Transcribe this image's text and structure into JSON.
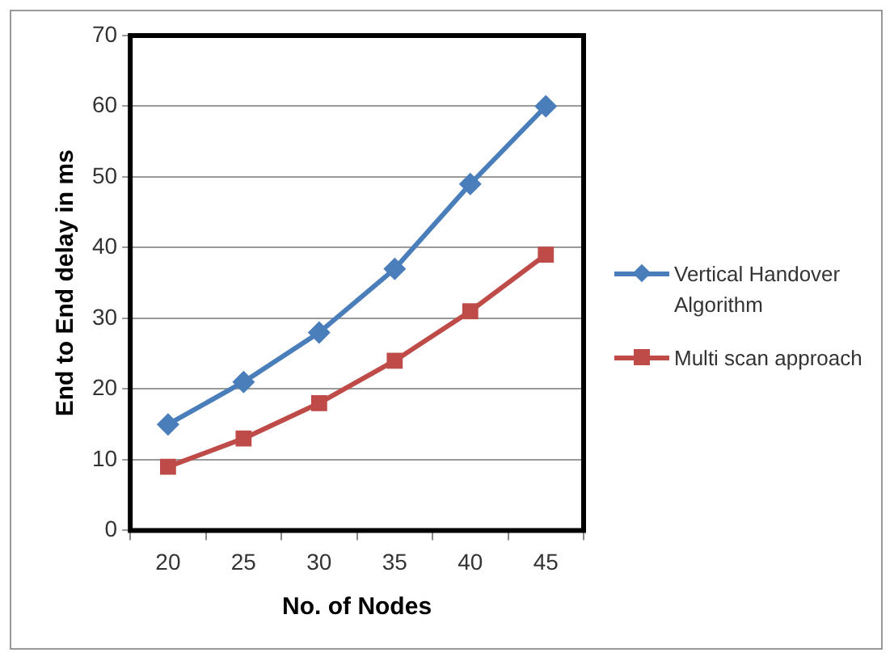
{
  "chart_data": {
    "type": "line",
    "xlabel": "No. of Nodes",
    "ylabel": "End to End delay in ms",
    "categories": [
      "20",
      "25",
      "30",
      "35",
      "40",
      "45"
    ],
    "series": [
      {
        "name": "Vertical Handover Algorithm",
        "color": "#4a7ebb",
        "marker": "diamond",
        "values": [
          15,
          21,
          28,
          37,
          49,
          60
        ]
      },
      {
        "name": "Multi scan approach",
        "color": "#be4b48",
        "marker": "square",
        "values": [
          9,
          13,
          18,
          24,
          31,
          39
        ]
      }
    ],
    "ylim": [
      0,
      70
    ],
    "yticks": [
      0,
      10,
      20,
      30,
      40,
      50,
      60,
      70
    ],
    "grid": "y",
    "legend": "right",
    "line_style": "solid"
  }
}
